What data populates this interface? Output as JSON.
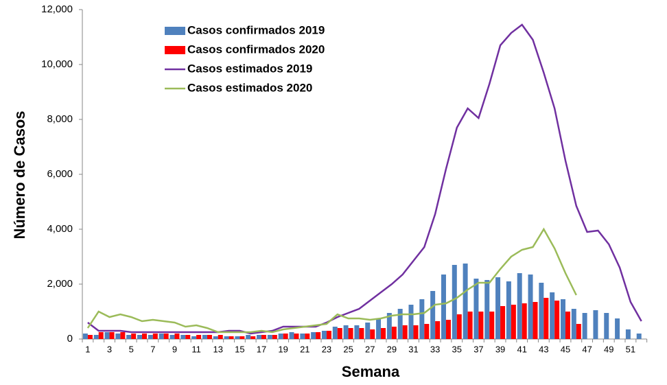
{
  "chart_data": {
    "type": "bar",
    "y_label": "Número de Casos",
    "x_label": "Semana",
    "categories": [
      "1",
      null,
      "3",
      null,
      "5",
      null,
      "7",
      null,
      "9",
      null,
      "11",
      null,
      "13",
      null,
      "15",
      null,
      "17",
      null,
      "19",
      null,
      "21",
      null,
      "23",
      null,
      "25",
      null,
      "27",
      null,
      "29",
      null,
      "31",
      null,
      "33",
      null,
      "35",
      null,
      "37",
      null,
      "39",
      null,
      "41",
      null,
      "43",
      null,
      "45",
      null,
      "47",
      null,
      "49",
      null,
      "51",
      null
    ],
    "ylim": [
      0,
      12000
    ],
    "yticks": [
      0,
      {
        "value": 2000,
        "label": "2,000"
      },
      {
        "value": 4000,
        "label": "4,000"
      },
      {
        "value": 6000,
        "label": "6,000"
      },
      {
        "value": 8000,
        "label": "8,000"
      },
      {
        "value": 10000,
        "label": "10,000"
      },
      {
        "value": 12000,
        "label": "12,000"
      }
    ],
    "grid": false,
    "legend": "upper left",
    "series": [
      {
        "name": "Casos confirmados 2019",
        "type": "bar",
        "color": "#4f81bd",
        "values": [
          200,
          150,
          250,
          200,
          150,
          150,
          150,
          200,
          150,
          150,
          100,
          150,
          100,
          100,
          100,
          150,
          150,
          150,
          200,
          250,
          200,
          250,
          300,
          450,
          500,
          500,
          600,
          750,
          950,
          1100,
          1250,
          1450,
          1750,
          2350,
          2700,
          2750,
          2200,
          2150,
          2250,
          2100,
          2400,
          2350,
          2050,
          1700,
          1450,
          1100,
          950,
          1050,
          950,
          750,
          350,
          200
        ]
      },
      {
        "name": "Casos confirmados 2020",
        "type": "bar",
        "color": "#ff0000",
        "values": [
          150,
          250,
          250,
          250,
          200,
          200,
          200,
          200,
          200,
          150,
          150,
          150,
          150,
          100,
          100,
          100,
          150,
          150,
          200,
          200,
          200,
          250,
          300,
          400,
          400,
          400,
          350,
          400,
          450,
          500,
          500,
          550,
          650,
          700,
          900,
          1000,
          1000,
          1000,
          1200,
          1250,
          1300,
          1350,
          1500,
          1400,
          1000,
          550,
          null,
          null,
          null,
          null,
          null,
          null
        ]
      },
      {
        "name": "Casos estimados 2019",
        "type": "line",
        "color": "#7030a0",
        "values": [
          600,
          300,
          300,
          300,
          250,
          250,
          250,
          250,
          250,
          250,
          250,
          250,
          250,
          300,
          300,
          200,
          250,
          300,
          450,
          450,
          450,
          450,
          600,
          800,
          950,
          1100,
          1400,
          1700,
          2000,
          2350,
          2850,
          3350,
          4550,
          6200,
          7700,
          8400,
          8050,
          9300,
          10700,
          11150,
          11450,
          10900,
          9700,
          8400,
          6500,
          4850,
          3900,
          3950,
          3450,
          2600,
          1350,
          650
        ]
      },
      {
        "name": "Casos estimados 2020",
        "type": "line",
        "color": "#9bbb59",
        "values": [
          400,
          1000,
          800,
          900,
          800,
          650,
          700,
          650,
          600,
          450,
          500,
          400,
          250,
          250,
          250,
          250,
          300,
          250,
          350,
          400,
          450,
          500,
          550,
          900,
          750,
          750,
          700,
          750,
          850,
          900,
          900,
          950,
          1250,
          1300,
          1500,
          1800,
          2050,
          2050,
          2550,
          3000,
          3250,
          3350,
          4000,
          3300,
          2400,
          1600,
          null,
          null,
          null,
          null,
          null,
          null
        ]
      }
    ]
  }
}
